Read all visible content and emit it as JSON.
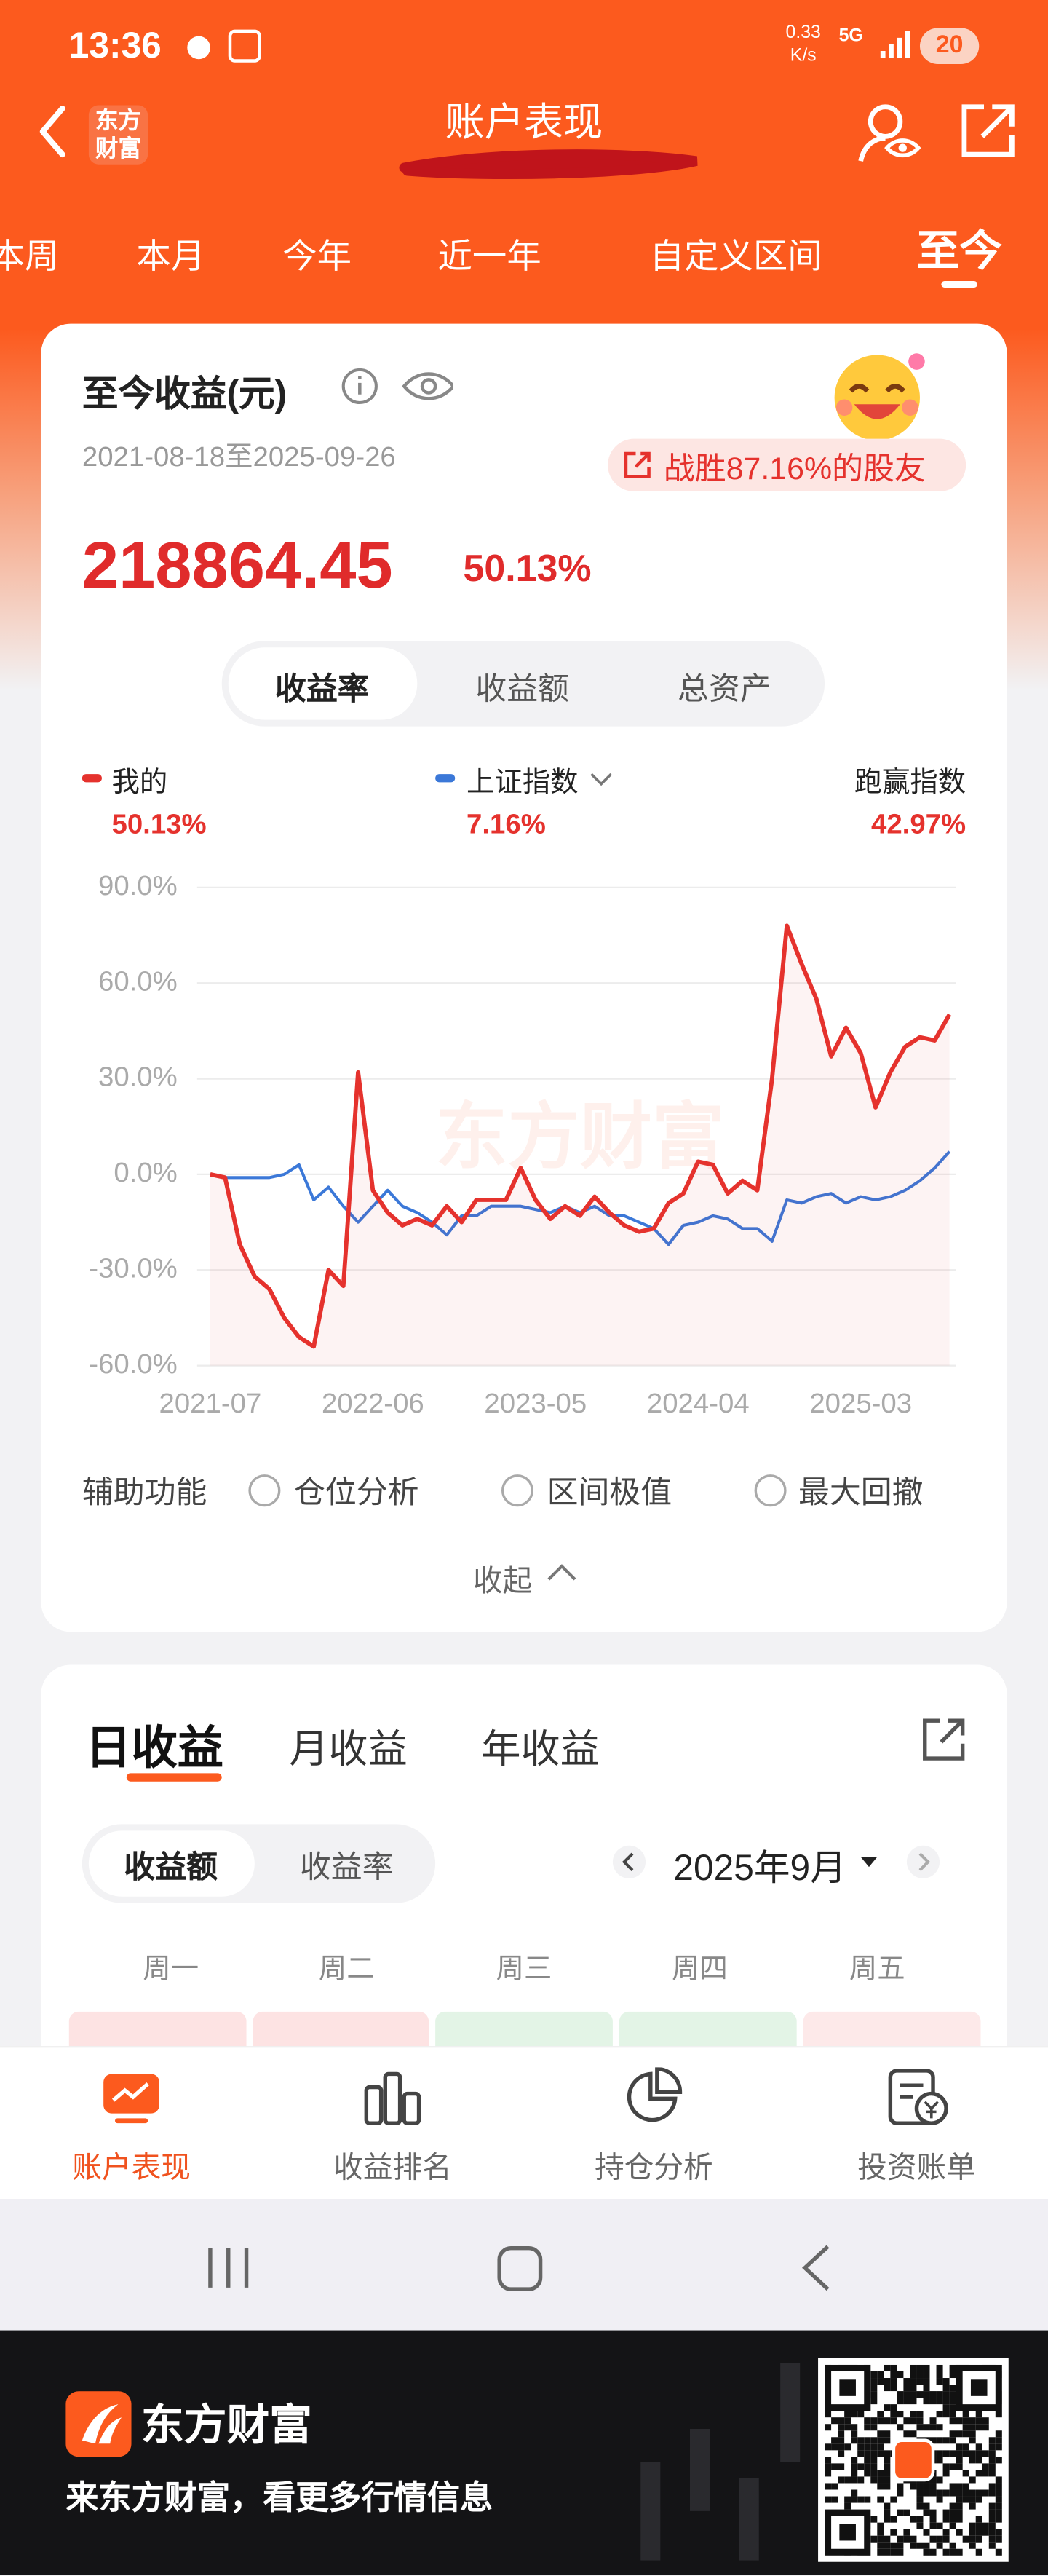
{
  "status_bar": {
    "time": "13:36",
    "net_speed": "0.33",
    "net_unit": "K/s",
    "network": "5G",
    "battery": "20"
  },
  "header": {
    "logo": "东方财富",
    "title": "账户表现"
  },
  "period_tabs": [
    "本周",
    "本月",
    "今年",
    "近一年",
    "自定义区间",
    "至今"
  ],
  "summary": {
    "title": "至今收益(元)",
    "date_range": "2021-08-18至2025-09-26",
    "badge": "战胜87.16%的股友",
    "amount": "218864.45",
    "rate": "50.13%"
  },
  "metric_toggle": [
    "收益率",
    "收益额",
    "总资产"
  ],
  "chart_legend": {
    "mine": "50.13%",
    "index": "7.16%",
    "beat_label": "跑赢指数",
    "beat": "42.97%"
  },
  "chart_data": {
    "type": "line",
    "watermark": "东方财富",
    "categories": [
      "2021-07",
      null,
      null,
      null,
      null,
      null,
      null,
      null,
      null,
      null,
      null,
      "2022-06",
      null,
      null,
      null,
      null,
      null,
      null,
      null,
      null,
      null,
      null,
      "2023-05",
      null,
      null,
      null,
      null,
      null,
      null,
      null,
      null,
      null,
      null,
      "2024-04",
      null,
      null,
      null,
      null,
      null,
      null,
      null,
      null,
      null,
      null,
      "2025-03",
      null,
      null,
      null,
      null,
      null,
      null
    ],
    "series": [
      {
        "name": "我的",
        "color": "#e5322d",
        "area_fill": true,
        "values": [
          0,
          -1,
          -22,
          -32,
          -36,
          -45,
          -51,
          -54,
          -30,
          -35,
          32,
          -5,
          -12,
          -16,
          -14,
          -16,
          -10,
          -15,
          -8,
          -8,
          -8,
          2,
          -8,
          -14,
          -10,
          -13,
          -7,
          -12,
          -16,
          -18,
          -17,
          -9,
          -6,
          4,
          3,
          -6,
          -2,
          -5,
          30,
          78,
          66,
          55,
          37,
          46,
          38,
          21,
          32,
          40,
          43,
          42,
          50.13
        ]
      },
      {
        "name": "上证指数",
        "color": "#3b78d8",
        "area_fill": false,
        "values": [
          0,
          -1,
          -1,
          -1,
          -1,
          0,
          3,
          -8,
          -4,
          -10,
          -15,
          -10,
          -5,
          -10,
          -12,
          -15,
          -19,
          -13,
          -13,
          -10,
          -10,
          -10,
          -11,
          -12,
          -10,
          -12,
          -10,
          -13,
          -13,
          -15,
          -17,
          -22,
          -16,
          -15,
          -13,
          -14,
          -17,
          -17,
          -21,
          -8,
          -9,
          -7,
          -6,
          -9,
          -7,
          -8,
          -7,
          -5,
          -2,
          2,
          7.16
        ]
      }
    ],
    "ylim": [
      -60,
      90
    ],
    "yticks": [
      {
        "value": 90,
        "label": "90.0%"
      },
      {
        "value": 60,
        "label": "60.0%"
      },
      {
        "value": 30,
        "label": "30.0%"
      },
      {
        "value": 0,
        "label": "0.0%"
      },
      {
        "value": -30,
        "label": "-30.0%"
      },
      {
        "value": -60,
        "label": "-60.0%"
      }
    ],
    "grid": true
  },
  "tools": {
    "label": "辅助功能",
    "options": [
      "仓位分析",
      "区间极值",
      "最大回撤"
    ],
    "collapse": "收起"
  },
  "daily": {
    "tabs": [
      "日收益",
      "月收益",
      "年收益"
    ],
    "toggle": [
      "收益额",
      "收益率"
    ],
    "month": "2025年9月",
    "weekdays": [
      "周一",
      "周二",
      "周三",
      "周四",
      "周五"
    ]
  },
  "bottom_nav": [
    "账户表现",
    "收益排名",
    "持仓分析",
    "投资账单"
  ],
  "banner": {
    "brand": "东方财富",
    "slogan": "来东方财富，看更多行情信息"
  }
}
